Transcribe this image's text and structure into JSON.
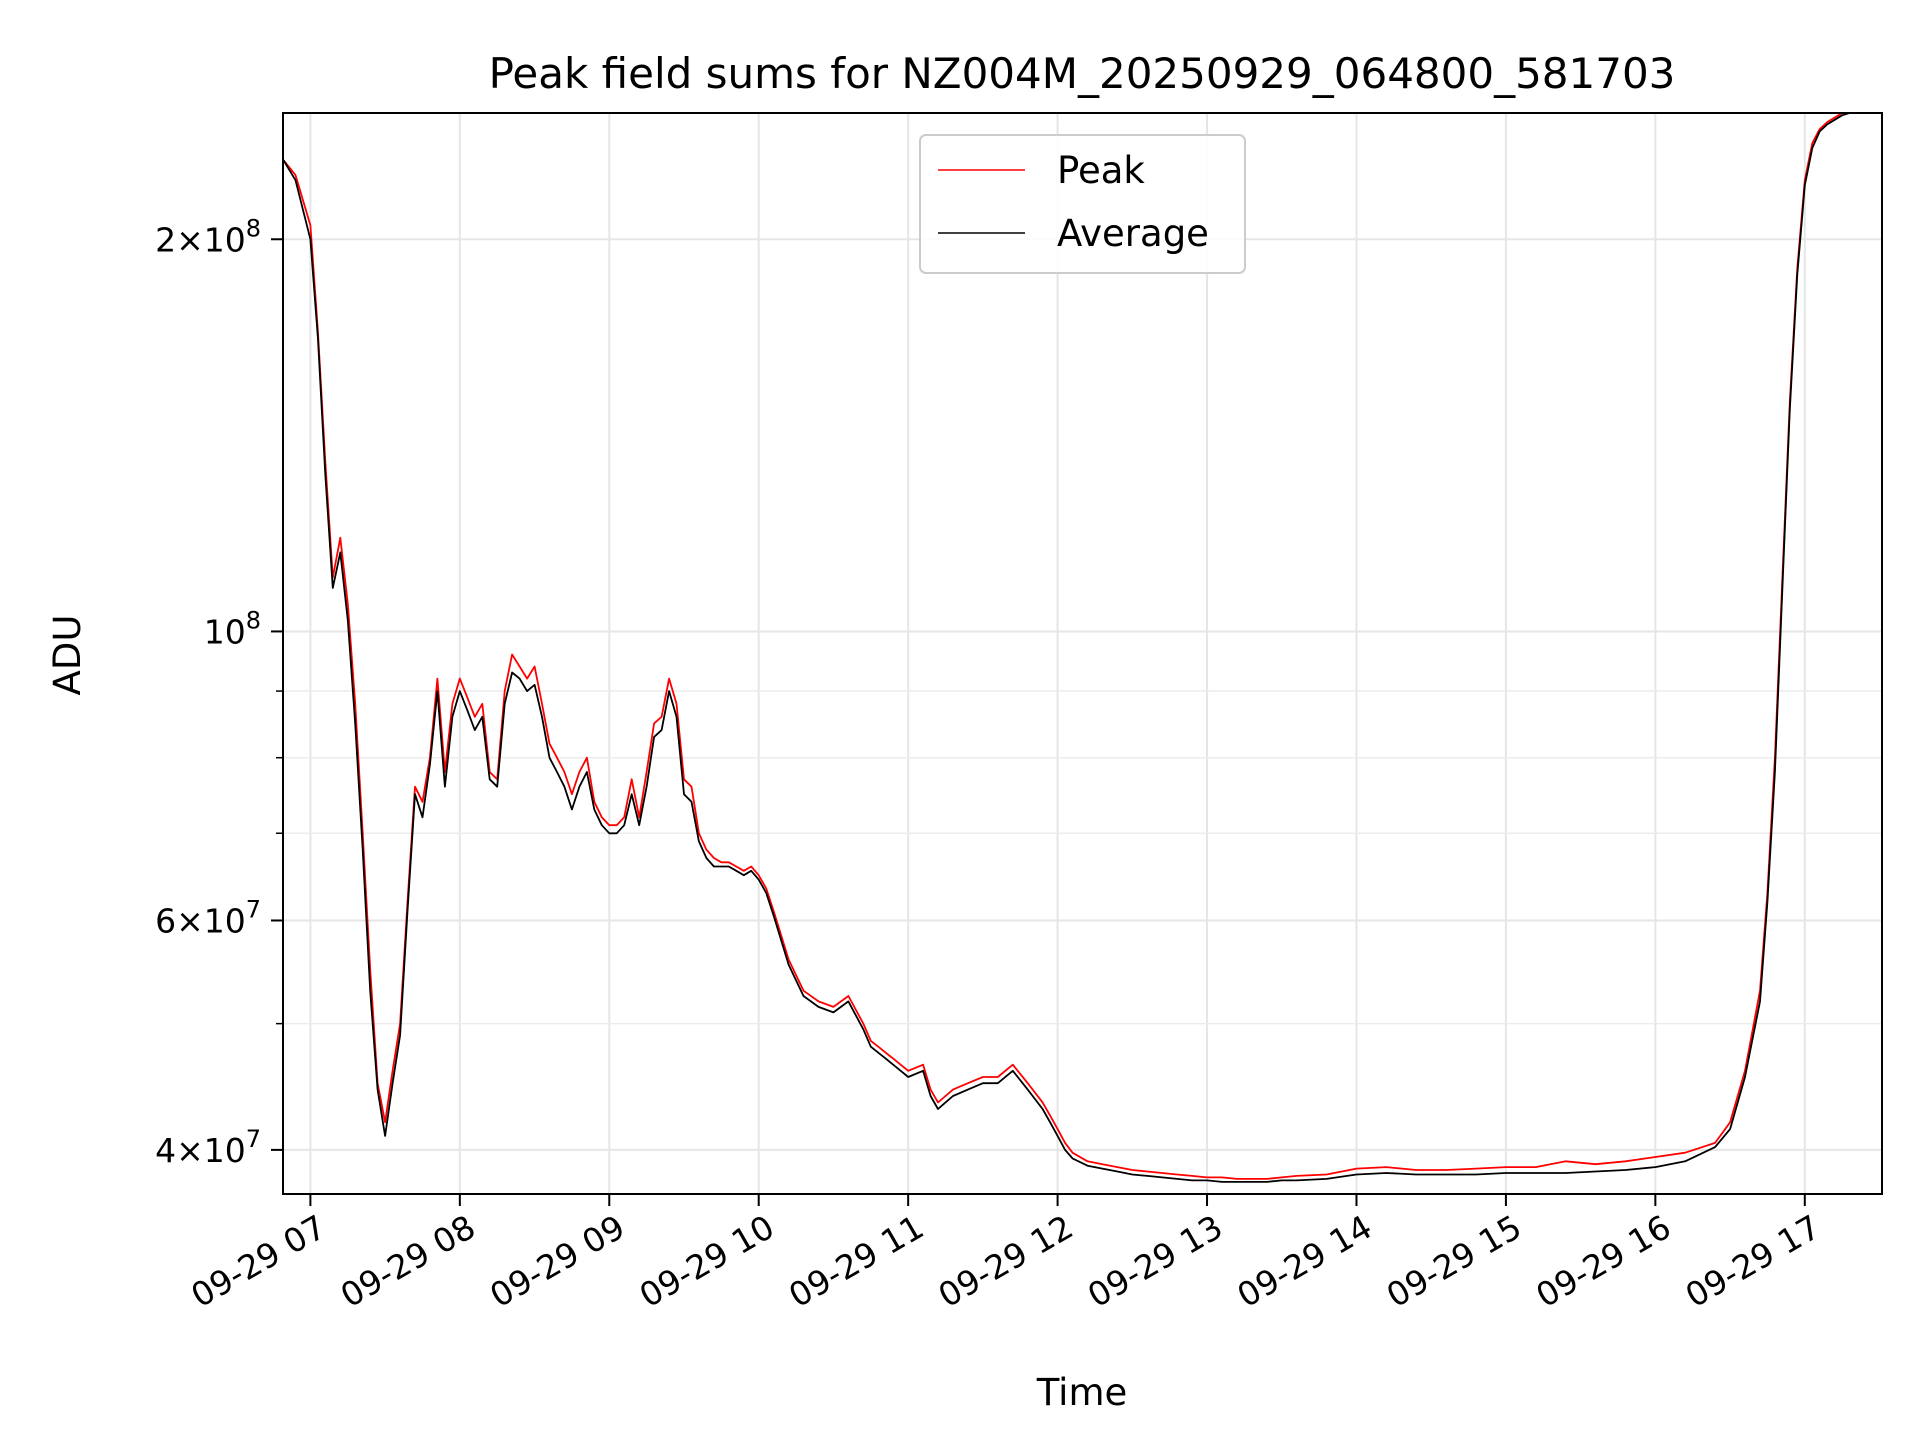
{
  "chart_data": {
    "type": "line",
    "title": "Peak field sums for NZ004M_20250929_064800_581703",
    "xlabel": "Time",
    "ylabel": "ADU",
    "y_scale": "log",
    "ylim": [
      37000000,
      250000000
    ],
    "xlim": [
      "09-29 06:49",
      "09-29 17:31"
    ],
    "grid": true,
    "legend_position": "top-center",
    "x_ticks": [
      "09-29 07",
      "09-29 08",
      "09-29 09",
      "09-29 10",
      "09-29 11",
      "09-29 12",
      "09-29 13",
      "09-29 14",
      "09-29 15",
      "09-29 16",
      "09-29 17"
    ],
    "x_tick_hours": [
      7,
      8,
      9,
      10,
      11,
      12,
      13,
      14,
      15,
      16,
      17
    ],
    "y_ticks": [
      {
        "value": 200000000,
        "mantissa": "2",
        "exponent": "8"
      },
      {
        "value": 100000000,
        "mantissa": "",
        "exponent": "8"
      },
      {
        "value": 60000000,
        "mantissa": "6",
        "exponent": "7"
      },
      {
        "value": 40000000,
        "mantissa": "4",
        "exponent": "7"
      }
    ],
    "y_minor_ticks": [
      50000000,
      70000000,
      80000000,
      90000000
    ],
    "x_hours": [
      6.82,
      6.9,
      7.0,
      7.05,
      7.1,
      7.15,
      7.2,
      7.25,
      7.3,
      7.35,
      7.4,
      7.45,
      7.5,
      7.55,
      7.6,
      7.65,
      7.7,
      7.75,
      7.8,
      7.85,
      7.9,
      7.95,
      8.0,
      8.05,
      8.1,
      8.15,
      8.2,
      8.25,
      8.3,
      8.35,
      8.4,
      8.45,
      8.5,
      8.55,
      8.6,
      8.65,
      8.7,
      8.75,
      8.8,
      8.85,
      8.9,
      8.95,
      9.0,
      9.05,
      9.1,
      9.15,
      9.2,
      9.25,
      9.3,
      9.35,
      9.4,
      9.45,
      9.5,
      9.55,
      9.6,
      9.65,
      9.7,
      9.75,
      9.8,
      9.85,
      9.9,
      9.95,
      10.0,
      10.05,
      10.1,
      10.2,
      10.3,
      10.4,
      10.5,
      10.6,
      10.7,
      10.75,
      10.8,
      10.85,
      10.9,
      10.95,
      11.0,
      11.1,
      11.15,
      11.2,
      11.25,
      11.3,
      11.4,
      11.5,
      11.6,
      11.7,
      11.8,
      11.9,
      11.95,
      12.0,
      12.05,
      12.1,
      12.2,
      12.3,
      12.4,
      12.5,
      12.6,
      12.7,
      12.8,
      12.9,
      13.0,
      13.1,
      13.2,
      13.3,
      13.4,
      13.5,
      13.6,
      13.8,
      14.0,
      14.2,
      14.4,
      14.6,
      14.8,
      15.0,
      15.2,
      15.4,
      15.6,
      15.8,
      16.0,
      16.2,
      16.4,
      16.5,
      16.6,
      16.7,
      16.75,
      16.8,
      16.85,
      16.9,
      16.95,
      17.0,
      17.05,
      17.1,
      17.15,
      17.2,
      17.25,
      17.3,
      17.35,
      17.4,
      17.45,
      17.5
    ],
    "series": [
      {
        "name": "Peak",
        "color": "#ff0000",
        "values": [
          230000000,
          224000000,
          205000000,
          170000000,
          135000000,
          110000000,
          118000000,
          105000000,
          88000000,
          70000000,
          55000000,
          45000000,
          42000000,
          46000000,
          50000000,
          62000000,
          76000000,
          74000000,
          80000000,
          92000000,
          78000000,
          88000000,
          92000000,
          89000000,
          86000000,
          88000000,
          78000000,
          77000000,
          90000000,
          96000000,
          94000000,
          92000000,
          94000000,
          88000000,
          82000000,
          80000000,
          78000000,
          75000000,
          78000000,
          80000000,
          74000000,
          72000000,
          71000000,
          71000000,
          72000000,
          77000000,
          72000000,
          78000000,
          85000000,
          86000000,
          92000000,
          88000000,
          77000000,
          76000000,
          70000000,
          68000000,
          67000000,
          66500000,
          66500000,
          66000000,
          65500000,
          66000000,
          65000000,
          63500000,
          61000000,
          56000000,
          53000000,
          52000000,
          51500000,
          52500000,
          50000000,
          48500000,
          48000000,
          47500000,
          47000000,
          46500000,
          46000000,
          46500000,
          44500000,
          43500000,
          44000000,
          44500000,
          45000000,
          45500000,
          45500000,
          46500000,
          45000000,
          43500000,
          42500000,
          41500000,
          40500000,
          39800000,
          39200000,
          39000000,
          38800000,
          38600000,
          38500000,
          38400000,
          38300000,
          38200000,
          38100000,
          38100000,
          38000000,
          38000000,
          38000000,
          38100000,
          38200000,
          38300000,
          38700000,
          38800000,
          38600000,
          38600000,
          38700000,
          38800000,
          38800000,
          39200000,
          39000000,
          39200000,
          39500000,
          39800000,
          40500000,
          42000000,
          46000000,
          53000000,
          63000000,
          80000000,
          110000000,
          150000000,
          190000000,
          222000000,
          237000000,
          243000000,
          246000000,
          248000000,
          250000000,
          250000000,
          250000000,
          250000000,
          250000000,
          250000000
        ]
      },
      {
        "name": "Average",
        "color": "#000000",
        "values": [
          230000000,
          222000000,
          200000000,
          168000000,
          132000000,
          108000000,
          115000000,
          102000000,
          85000000,
          68000000,
          53000000,
          44500000,
          41000000,
          45000000,
          49000000,
          61000000,
          75000000,
          72000000,
          79000000,
          90000000,
          76000000,
          86000000,
          90000000,
          87000000,
          84000000,
          86000000,
          77000000,
          76000000,
          88000000,
          93000000,
          92000000,
          90000000,
          91000000,
          86000000,
          80000000,
          78000000,
          76000000,
          73000000,
          76000000,
          78000000,
          73000000,
          71000000,
          70000000,
          70000000,
          71000000,
          75000000,
          71000000,
          76000000,
          83000000,
          84000000,
          90000000,
          86000000,
          75000000,
          74000000,
          69000000,
          67000000,
          66000000,
          66000000,
          66000000,
          65500000,
          65000000,
          65500000,
          64500000,
          63000000,
          60500000,
          55500000,
          52500000,
          51500000,
          51000000,
          52000000,
          49500000,
          48000000,
          47500000,
          47000000,
          46500000,
          46000000,
          45500000,
          46000000,
          44000000,
          43000000,
          43500000,
          44000000,
          44500000,
          45000000,
          45000000,
          46000000,
          44500000,
          43000000,
          42000000,
          41000000,
          40000000,
          39400000,
          38900000,
          38700000,
          38500000,
          38300000,
          38200000,
          38100000,
          38000000,
          37900000,
          37900000,
          37800000,
          37800000,
          37800000,
          37800000,
          37900000,
          37900000,
          38000000,
          38300000,
          38400000,
          38300000,
          38300000,
          38300000,
          38400000,
          38400000,
          38400000,
          38500000,
          38600000,
          38800000,
          39200000,
          40200000,
          41500000,
          45500000,
          52000000,
          62000000,
          78000000,
          108000000,
          148000000,
          188000000,
          220000000,
          235000000,
          242000000,
          245000000,
          247000000,
          249000000,
          250000000,
          250000000,
          250000000,
          250000000,
          250000000
        ]
      }
    ]
  }
}
